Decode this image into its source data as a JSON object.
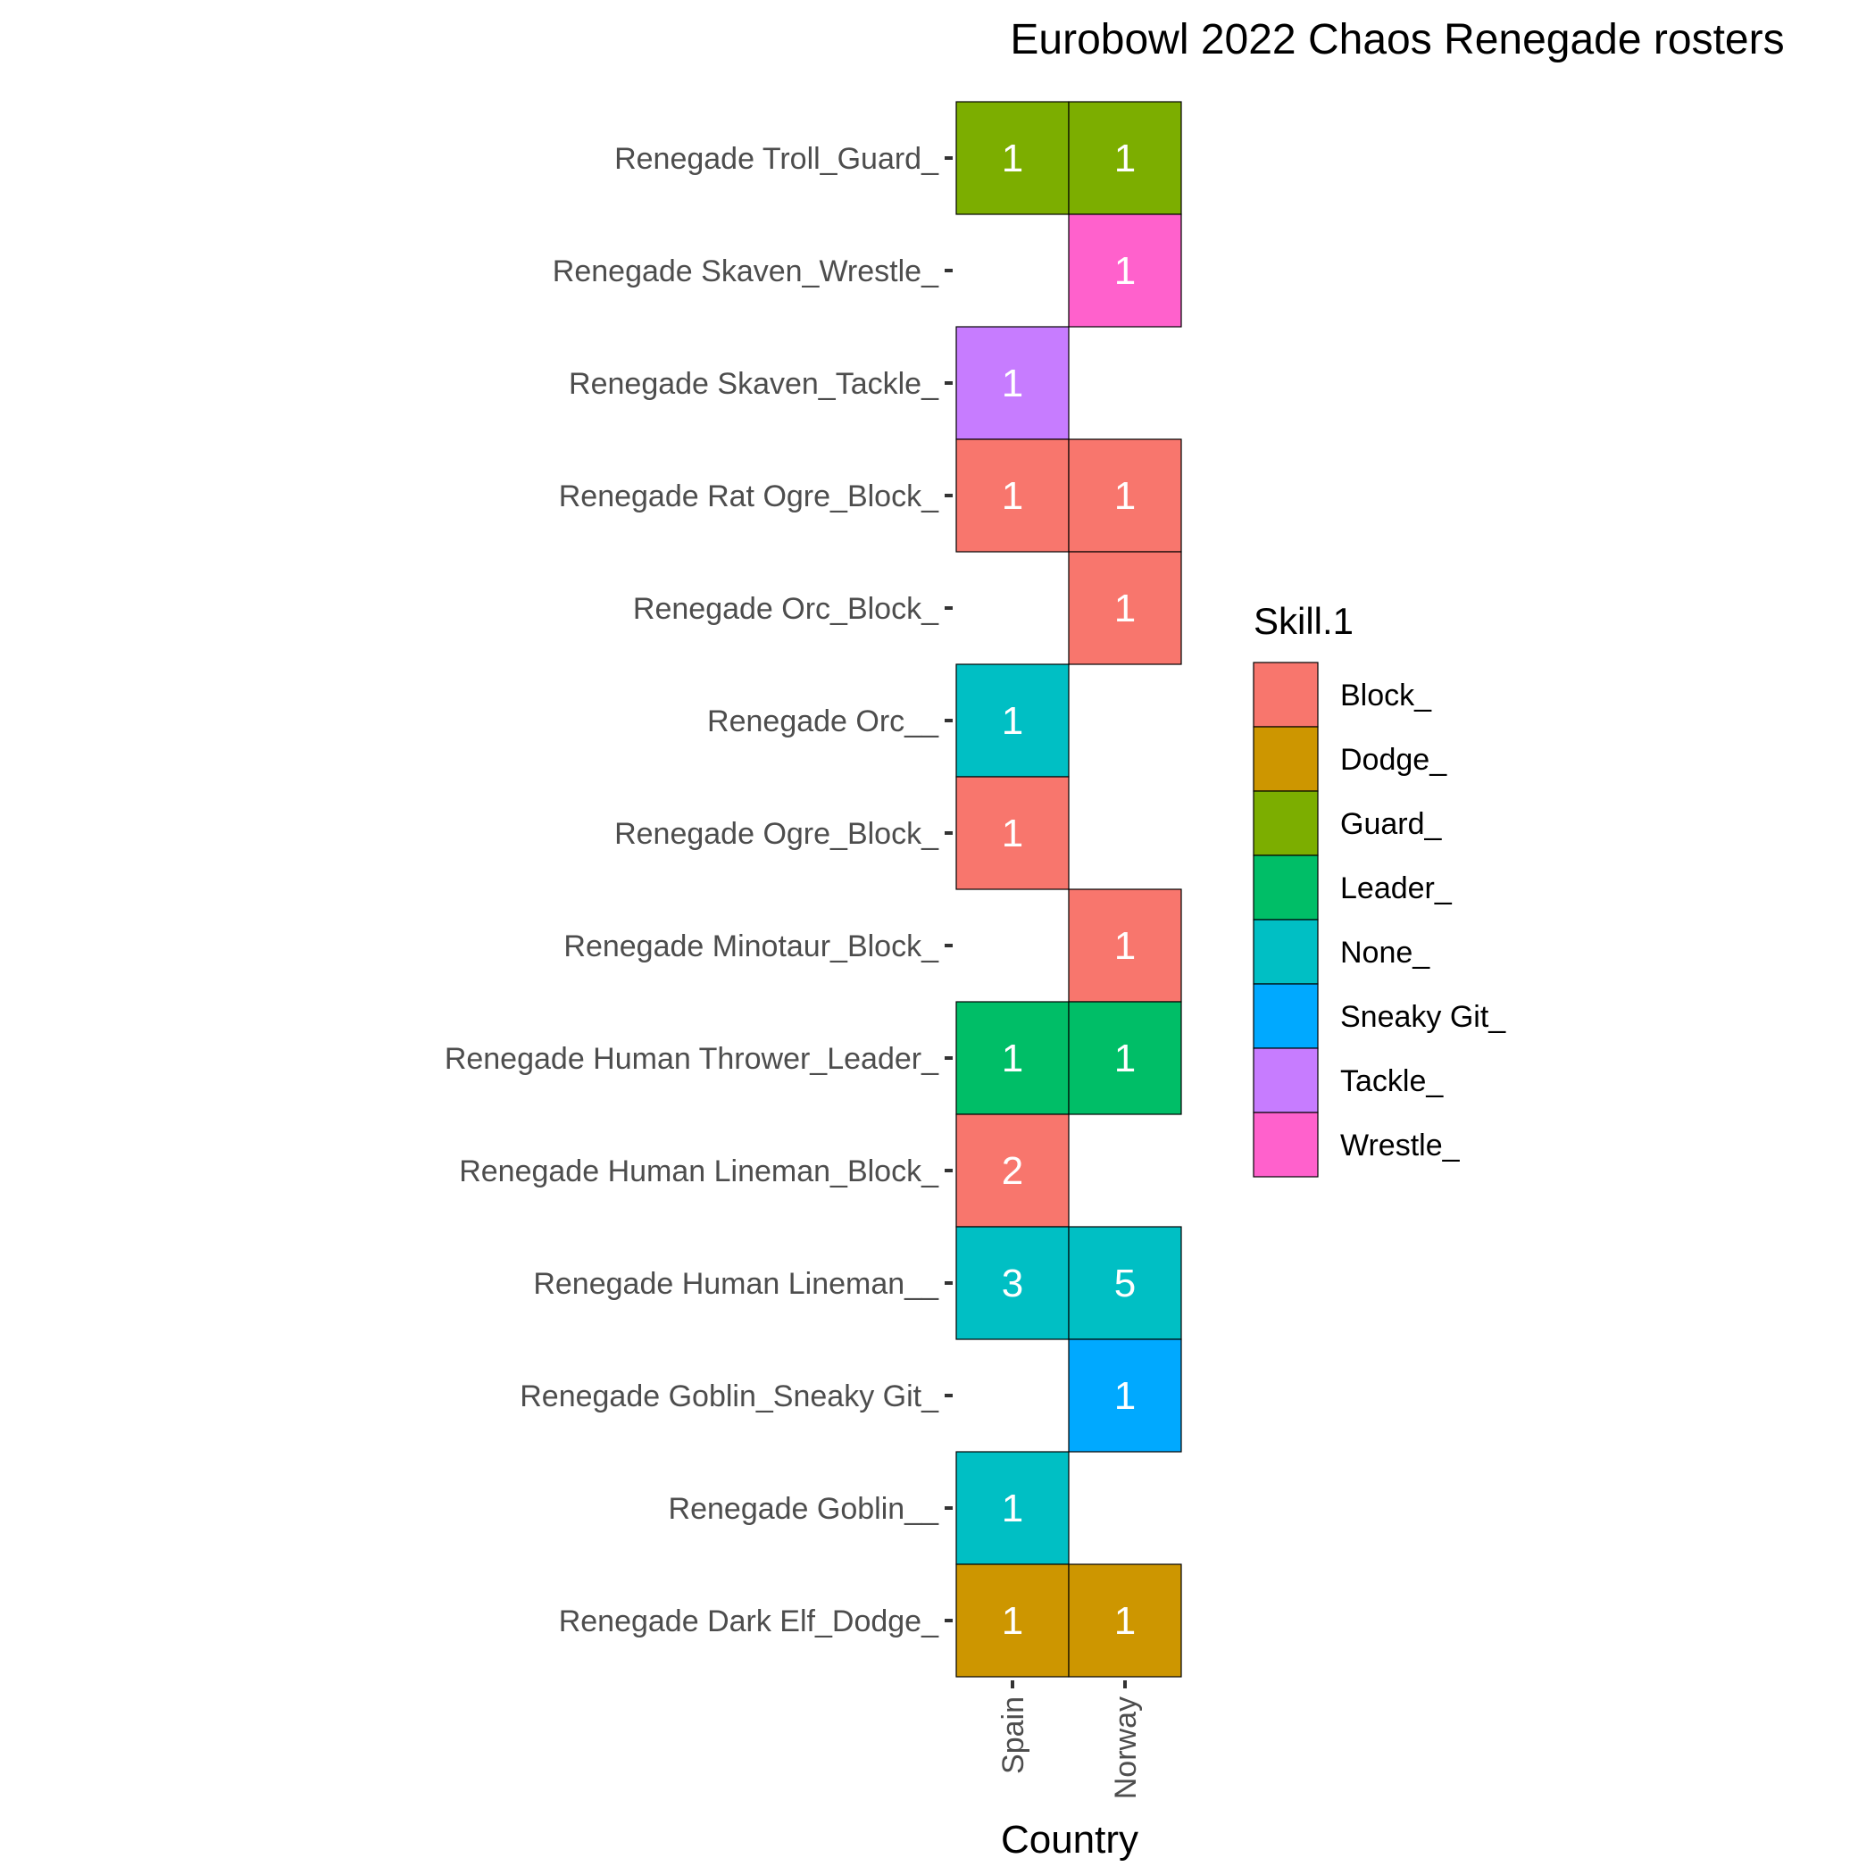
{
  "chart_data": {
    "type": "heatmap",
    "title": "Eurobowl 2022 Chaos Renegade rosters",
    "xlabel": "Country",
    "ylabel": "",
    "x_categories": [
      "Spain",
      "Norway"
    ],
    "y_categories": [
      "Renegade Troll_Guard_",
      "Renegade Skaven_Wrestle_",
      "Renegade Skaven_Tackle_",
      "Renegade Rat Ogre_Block_",
      "Renegade Orc_Block_",
      "Renegade Orc__",
      "Renegade Ogre_Block_",
      "Renegade Minotaur_Block_",
      "Renegade Human Thrower_Leader_",
      "Renegade Human Lineman_Block_",
      "Renegade Human Lineman__",
      "Renegade Goblin_Sneaky Git_",
      "Renegade Goblin__",
      "Renegade Dark Elf_Dodge_"
    ],
    "legend": {
      "title": "Skill.1",
      "placement": "right",
      "entries": [
        {
          "label": "Block_",
          "color": "#F8766D"
        },
        {
          "label": "Dodge_",
          "color": "#CD9600"
        },
        {
          "label": "Guard_",
          "color": "#7CAE00"
        },
        {
          "label": "Leader_",
          "color": "#00BE67"
        },
        {
          "label": "None_",
          "color": "#00BFC4"
        },
        {
          "label": "Sneaky Git_",
          "color": "#00A9FF"
        },
        {
          "label": "Tackle_",
          "color": "#C77CFF"
        },
        {
          "label": "Wrestle_",
          "color": "#FF61CC"
        }
      ]
    },
    "cells": [
      {
        "x": "Spain",
        "y": "Renegade Troll_Guard_",
        "value": 1,
        "skill": "Guard_"
      },
      {
        "x": "Norway",
        "y": "Renegade Troll_Guard_",
        "value": 1,
        "skill": "Guard_"
      },
      {
        "x": "Norway",
        "y": "Renegade Skaven_Wrestle_",
        "value": 1,
        "skill": "Wrestle_"
      },
      {
        "x": "Spain",
        "y": "Renegade Skaven_Tackle_",
        "value": 1,
        "skill": "Tackle_"
      },
      {
        "x": "Spain",
        "y": "Renegade Rat Ogre_Block_",
        "value": 1,
        "skill": "Block_"
      },
      {
        "x": "Norway",
        "y": "Renegade Rat Ogre_Block_",
        "value": 1,
        "skill": "Block_"
      },
      {
        "x": "Norway",
        "y": "Renegade Orc_Block_",
        "value": 1,
        "skill": "Block_"
      },
      {
        "x": "Spain",
        "y": "Renegade Orc__",
        "value": 1,
        "skill": "None_"
      },
      {
        "x": "Spain",
        "y": "Renegade Ogre_Block_",
        "value": 1,
        "skill": "Block_"
      },
      {
        "x": "Norway",
        "y": "Renegade Minotaur_Block_",
        "value": 1,
        "skill": "Block_"
      },
      {
        "x": "Spain",
        "y": "Renegade Human Thrower_Leader_",
        "value": 1,
        "skill": "Leader_"
      },
      {
        "x": "Norway",
        "y": "Renegade Human Thrower_Leader_",
        "value": 1,
        "skill": "Leader_"
      },
      {
        "x": "Spain",
        "y": "Renegade Human Lineman_Block_",
        "value": 2,
        "skill": "Block_"
      },
      {
        "x": "Spain",
        "y": "Renegade Human Lineman__",
        "value": 3,
        "skill": "None_"
      },
      {
        "x": "Norway",
        "y": "Renegade Human Lineman__",
        "value": 5,
        "skill": "None_"
      },
      {
        "x": "Norway",
        "y": "Renegade Goblin_Sneaky Git_",
        "value": 1,
        "skill": "Sneaky Git_"
      },
      {
        "x": "Spain",
        "y": "Renegade Goblin__",
        "value": 1,
        "skill": "None_"
      },
      {
        "x": "Spain",
        "y": "Renegade Dark Elf_Dodge_",
        "value": 1,
        "skill": "Dodge_"
      },
      {
        "x": "Norway",
        "y": "Renegade Dark Elf_Dodge_",
        "value": 1,
        "skill": "Dodge_"
      }
    ]
  }
}
